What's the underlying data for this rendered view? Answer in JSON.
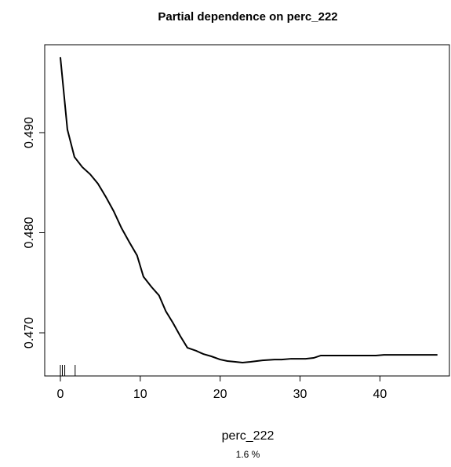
{
  "chart_data": {
    "type": "line",
    "title": "Partial dependence on perc_222",
    "x_label": "perc_222",
    "subtitle": "1.6 %",
    "color": "#000000",
    "x": [
      0,
      0.88,
      1.76,
      2.75,
      3.73,
      4.7,
      5.7,
      6.67,
      7.65,
      8.63,
      9.6,
      10.4,
      11.4,
      12.35,
      13.2,
      14.1,
      15.0,
      15.9,
      17,
      17.9,
      18.9,
      20,
      20.9,
      21.9,
      22.8,
      23.8,
      25.3,
      26.8,
      27.7,
      28.9,
      30.7,
      31.7,
      32.6,
      33.6,
      39.5,
      40.5,
      47.2
    ],
    "values": [
      0.49753,
      0.49031,
      0.48757,
      0.48655,
      0.48584,
      0.4849,
      0.48357,
      0.48216,
      0.48047,
      0.47906,
      0.47773,
      0.47561,
      0.47459,
      0.47373,
      0.47216,
      0.47098,
      0.46969,
      0.46851,
      0.4682,
      0.46788,
      0.46765,
      0.46733,
      0.46718,
      0.4671,
      0.46702,
      0.4671,
      0.46725,
      0.46733,
      0.46733,
      0.46741,
      0.46741,
      0.46749,
      0.46773,
      0.46773,
      0.46773,
      0.4678,
      0.4678
    ],
    "rug": [
      0,
      0.25,
      0.55,
      1.85
    ],
    "xlim": [
      -1.96,
      48.7
    ],
    "ylim": [
      0.46569,
      0.49878
    ],
    "xticks": [
      0,
      10,
      20,
      30,
      40
    ],
    "yticks": [
      {
        "value": 0.47,
        "label": "0.470"
      },
      {
        "value": 0.48,
        "label": "0.480"
      },
      {
        "value": 0.49,
        "label": "0.490"
      }
    ]
  }
}
